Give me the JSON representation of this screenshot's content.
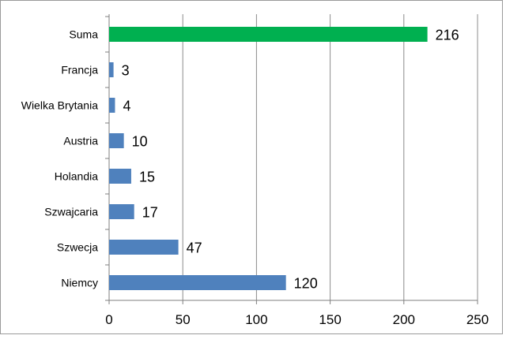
{
  "chart_data": {
    "type": "bar",
    "orientation": "horizontal",
    "categories": [
      "Suma",
      "Francja",
      "Wielka Brytania",
      "Austria",
      "Holandia",
      "Szwajcaria",
      "Szwecja",
      "Niemcy"
    ],
    "values": [
      216,
      3,
      4,
      10,
      15,
      17,
      47,
      120
    ],
    "data_labels": [
      "216",
      "3",
      "4",
      "10",
      "15",
      "17",
      "47",
      "120"
    ],
    "xticks": [
      "0",
      "50",
      "100",
      "150",
      "200",
      "250"
    ],
    "xlim": [
      0,
      250
    ],
    "grid": true,
    "legend": "none",
    "title": "",
    "xlabel": "",
    "ylabel": "",
    "colors": {
      "highlight": "#00b050",
      "bar": "#4f81bd",
      "grid": "#8c8c8c",
      "axis": "#7f7f7f"
    }
  }
}
